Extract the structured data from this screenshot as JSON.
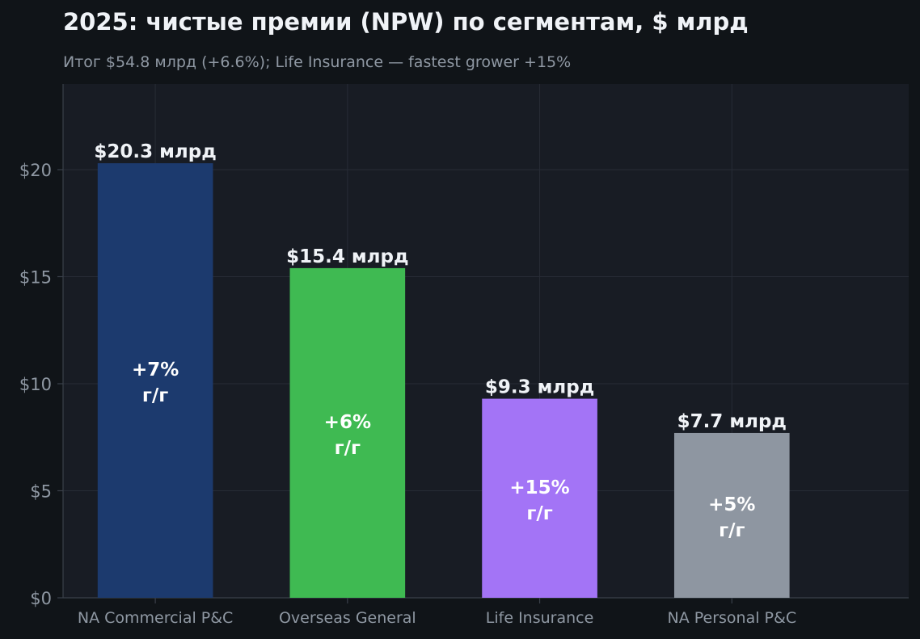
{
  "chart_data": {
    "type": "bar",
    "title": "2025: чистые премии (NPW) по сегментам, $ млрд",
    "subtitle": "Итог $54.8 млрд (+6.6%); Life Insurance — fastest grower +15%",
    "xlabel": "",
    "ylabel": "",
    "ylim": [
      0,
      24
    ],
    "yticks": [
      0,
      5,
      10,
      15,
      20
    ],
    "ytick_labels": [
      "$0",
      "$5",
      "$10",
      "$15",
      "$20"
    ],
    "grid": true,
    "categories": [
      "NA Commercial P&C",
      "Overseas General",
      "Life Insurance",
      "NA Personal P&C"
    ],
    "values": [
      20.3,
      15.4,
      9.3,
      7.7
    ],
    "value_labels": [
      "$20.3 млрд",
      "$15.4 млрд",
      "$9.3 млрд",
      "$7.7 млрд"
    ],
    "growth_labels": [
      "+7%",
      "+6%",
      "+15%",
      "+5%"
    ],
    "growth_unit": "г/г",
    "colors": [
      "#1c3a6e",
      "#3fba52",
      "#a374f6",
      "#8e96a1"
    ]
  },
  "theme": {
    "plot_background": "#181c24",
    "grid_color": "#272c36",
    "axis_color": "#3a404a"
  }
}
